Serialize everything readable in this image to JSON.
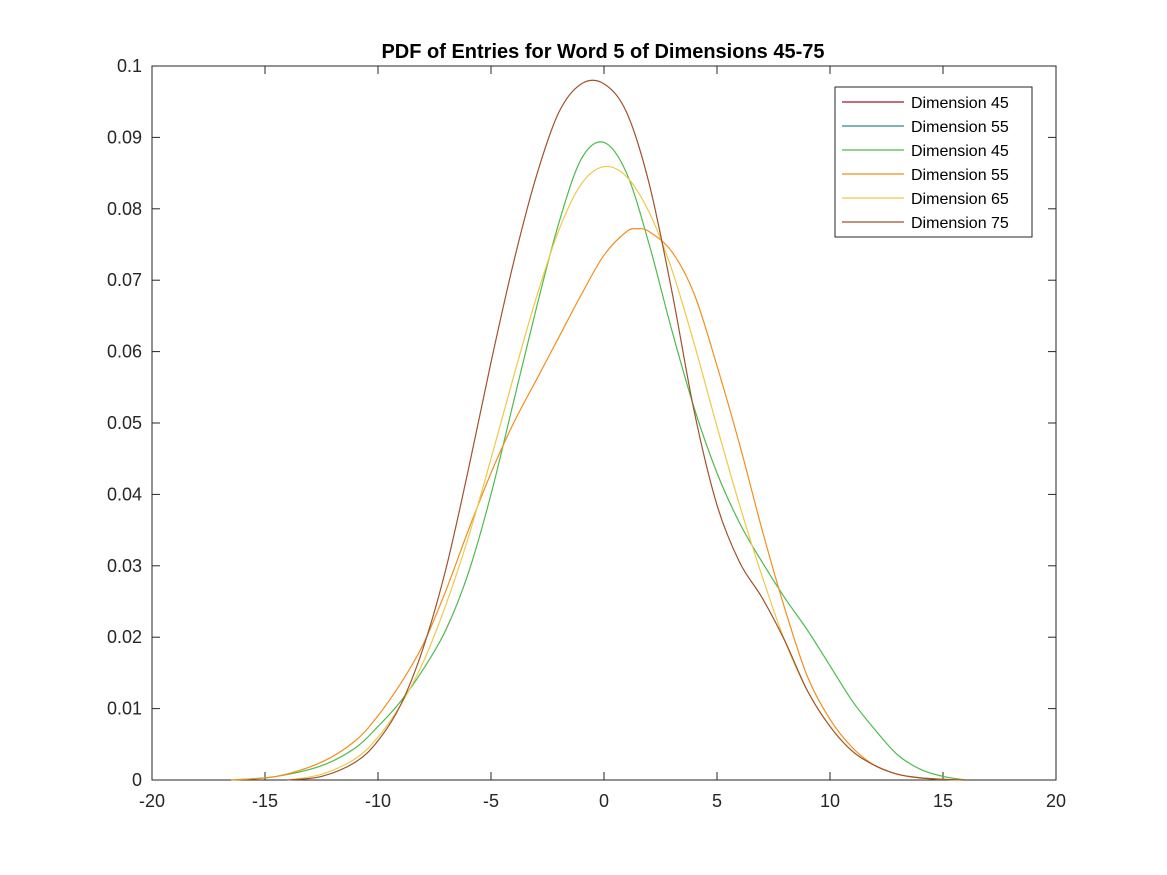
{
  "chart_data": {
    "type": "line",
    "title": "PDF of Entries for Word 5 of Dimensions 45-75",
    "xlabel": "",
    "ylabel": "",
    "xlim": [
      -20,
      20
    ],
    "ylim": [
      0,
      0.1
    ],
    "xticks": [
      -20,
      -15,
      -10,
      -5,
      0,
      5,
      10,
      15,
      20
    ],
    "yticks": [
      0,
      0.01,
      0.02,
      0.03,
      0.04,
      0.05,
      0.06,
      0.07,
      0.08,
      0.09,
      0.1
    ],
    "xtick_labels": [
      "-20",
      "-15",
      "-10",
      "-5",
      "0",
      "5",
      "10",
      "15",
      "20"
    ],
    "ytick_labels": [
      "0",
      "0.01",
      "0.02",
      "0.03",
      "0.04",
      "0.05",
      "0.06",
      "0.07",
      "0.08",
      "0.09",
      "0.1"
    ],
    "grid": false,
    "legend_position": "top-right",
    "series": [
      {
        "name": "Dimension 45",
        "color": "#a2142f",
        "x": [],
        "y": []
      },
      {
        "name": "Dimension 55",
        "color": "#2e8b8b",
        "x": [],
        "y": []
      },
      {
        "name": "Dimension 45",
        "color": "#4dbb4d",
        "x": [
          -16.5,
          -14.5,
          -12.5,
          -11,
          -10,
          -9,
          -8,
          -7,
          -6,
          -5,
          -4,
          -3,
          -2,
          -1,
          0,
          1,
          2,
          3,
          4,
          5,
          6,
          7,
          8,
          9,
          10,
          11,
          12,
          13,
          14,
          15,
          16
        ],
        "y": [
          0.0,
          0.0005,
          0.002,
          0.0045,
          0.0075,
          0.011,
          0.0155,
          0.021,
          0.029,
          0.04,
          0.053,
          0.066,
          0.078,
          0.087,
          0.0893,
          0.085,
          0.075,
          0.063,
          0.052,
          0.043,
          0.036,
          0.0305,
          0.0255,
          0.021,
          0.016,
          0.011,
          0.007,
          0.0035,
          0.0015,
          0.0005,
          0.0
        ]
      },
      {
        "name": "Dimension 55",
        "color": "#f28e1c",
        "x": [
          -16.5,
          -14.5,
          -12.5,
          -11,
          -10,
          -9,
          -8,
          -7,
          -6,
          -5,
          -4,
          -3,
          -2,
          -1,
          0,
          1,
          1.5,
          2,
          3,
          4,
          5,
          6,
          7,
          8,
          9,
          10,
          11,
          12,
          13,
          14,
          15,
          16
        ],
        "y": [
          0.0,
          0.0005,
          0.0025,
          0.0055,
          0.009,
          0.0135,
          0.019,
          0.0265,
          0.035,
          0.043,
          0.05,
          0.056,
          0.062,
          0.068,
          0.0735,
          0.0768,
          0.0772,
          0.0768,
          0.074,
          0.068,
          0.058,
          0.047,
          0.035,
          0.024,
          0.0145,
          0.0085,
          0.0045,
          0.002,
          0.0008,
          0.0003,
          0.0001,
          0.0
        ]
      },
      {
        "name": "Dimension 65",
        "color": "#edc948",
        "x": [
          -14,
          -12.5,
          -11,
          -10,
          -9,
          -8,
          -7,
          -6,
          -5,
          -4,
          -3,
          -2,
          -1,
          0,
          1,
          2,
          3,
          4,
          5,
          6,
          7,
          8,
          9,
          10,
          11,
          12,
          13,
          14,
          15,
          16
        ],
        "y": [
          0.0,
          0.0008,
          0.003,
          0.006,
          0.0105,
          0.0165,
          0.0245,
          0.034,
          0.045,
          0.0565,
          0.0675,
          0.077,
          0.0835,
          0.0859,
          0.0845,
          0.0795,
          0.0715,
          0.061,
          0.0495,
          0.0385,
          0.0285,
          0.0195,
          0.0125,
          0.0075,
          0.004,
          0.002,
          0.0008,
          0.0003,
          0.0001,
          0.0
        ]
      },
      {
        "name": "Dimension 75",
        "color": "#a0522d",
        "x": [
          -14,
          -12.5,
          -11,
          -10,
          -9,
          -8,
          -7,
          -6,
          -5,
          -4,
          -3,
          -2,
          -1,
          0,
          1,
          2,
          3,
          4,
          5,
          6,
          7,
          8,
          9,
          10,
          11,
          12,
          13,
          14,
          15,
          16
        ],
        "y": [
          0.0,
          0.0005,
          0.0025,
          0.0055,
          0.0105,
          0.0185,
          0.0295,
          0.0435,
          0.0585,
          0.0725,
          0.0845,
          0.0935,
          0.0975,
          0.0975,
          0.0935,
          0.0835,
          0.0685,
          0.0515,
          0.0385,
          0.0305,
          0.0255,
          0.0195,
          0.0125,
          0.0075,
          0.004,
          0.002,
          0.0008,
          0.0003,
          0.0001,
          0.0
        ]
      }
    ]
  }
}
